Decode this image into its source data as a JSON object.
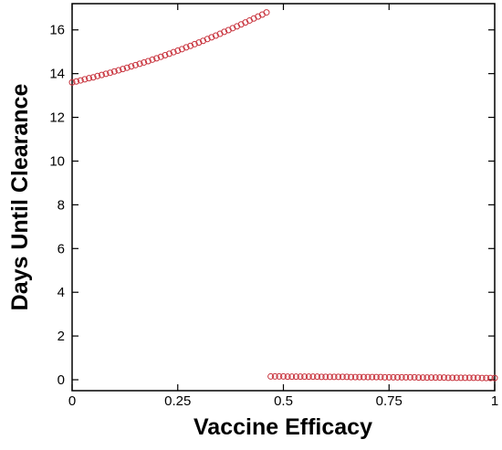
{
  "chart_data": {
    "type": "scatter",
    "x_label": "Vaccine Efficacy",
    "y_label": "Days Until Clearance",
    "xlim": [
      0,
      1
    ],
    "ylim": [
      -0.5,
      17.2
    ],
    "xticks": [
      0,
      0.25,
      0.5,
      0.75,
      1
    ],
    "yticks": [
      0,
      2,
      4,
      6,
      8,
      10,
      12,
      14,
      16
    ],
    "series": [
      {
        "color": "#c8323c",
        "x": [
          0,
          0.01,
          0.02,
          0.03,
          0.04,
          0.05,
          0.06,
          0.07,
          0.08,
          0.09,
          0.1,
          0.11,
          0.12,
          0.13,
          0.14,
          0.15,
          0.16,
          0.17,
          0.18,
          0.19,
          0.2,
          0.21,
          0.22,
          0.23,
          0.24,
          0.25,
          0.26,
          0.27,
          0.28,
          0.29,
          0.3,
          0.31,
          0.32,
          0.33,
          0.34,
          0.35,
          0.36,
          0.37,
          0.38,
          0.39,
          0.4,
          0.41,
          0.42,
          0.43,
          0.44,
          0.45,
          0.46
        ],
        "values": [
          13.6,
          13.64,
          13.69,
          13.74,
          13.79,
          13.83,
          13.89,
          13.94,
          13.99,
          14.04,
          14.1,
          14.15,
          14.21,
          14.27,
          14.33,
          14.39,
          14.45,
          14.51,
          14.57,
          14.64,
          14.7,
          14.77,
          14.84,
          14.91,
          14.98,
          15.05,
          15.12,
          15.2,
          15.27,
          15.35,
          15.42,
          15.5,
          15.58,
          15.66,
          15.74,
          15.82,
          15.91,
          15.99,
          16.08,
          16.16,
          16.25,
          16.34,
          16.43,
          16.52,
          16.61,
          16.7,
          16.8
        ]
      },
      {
        "color": "#c8323c",
        "x": [
          0.47,
          0.48,
          0.49,
          0.5,
          0.51,
          0.52,
          0.53,
          0.54,
          0.55,
          0.56,
          0.57,
          0.58,
          0.59,
          0.6,
          0.61,
          0.62,
          0.63,
          0.64,
          0.65,
          0.66,
          0.67,
          0.68,
          0.69,
          0.7,
          0.71,
          0.72,
          0.73,
          0.74,
          0.75,
          0.76,
          0.77,
          0.78,
          0.79,
          0.8,
          0.81,
          0.82,
          0.83,
          0.84,
          0.85,
          0.86,
          0.87,
          0.88,
          0.89,
          0.9,
          0.91,
          0.92,
          0.93,
          0.94,
          0.95,
          0.96,
          0.97,
          0.98,
          0.99,
          1
        ],
        "values": [
          0.15,
          0.15,
          0.15,
          0.15,
          0.14,
          0.14,
          0.14,
          0.14,
          0.14,
          0.14,
          0.14,
          0.14,
          0.13,
          0.13,
          0.13,
          0.13,
          0.13,
          0.13,
          0.13,
          0.12,
          0.12,
          0.12,
          0.12,
          0.12,
          0.12,
          0.12,
          0.12,
          0.11,
          0.11,
          0.11,
          0.11,
          0.11,
          0.11,
          0.11,
          0.11,
          0.1,
          0.1,
          0.1,
          0.1,
          0.1,
          0.1,
          0.1,
          0.09,
          0.09,
          0.09,
          0.09,
          0.09,
          0.09,
          0.09,
          0.09,
          0.08,
          0.08,
          0.08,
          0.08
        ]
      }
    ]
  }
}
